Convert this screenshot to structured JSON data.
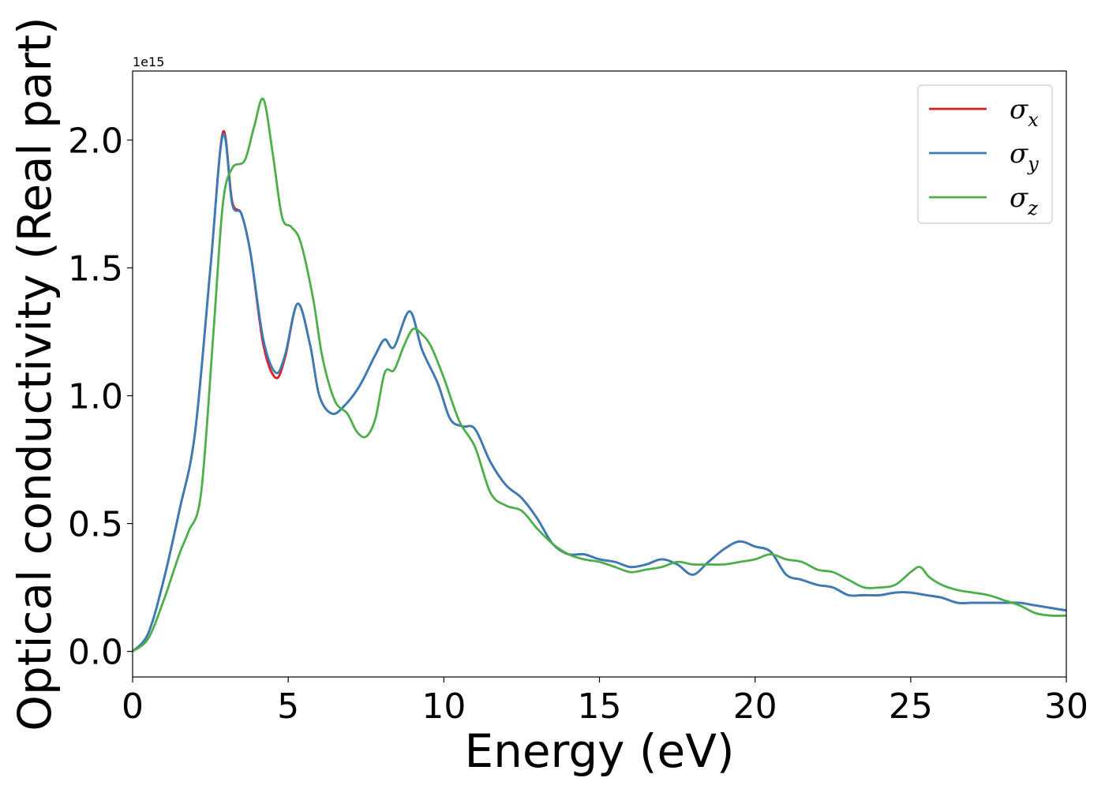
{
  "chart_data": {
    "type": "line",
    "xlabel": "Energy (eV)",
    "ylabel": "Optical conductivity (Real part)",
    "y_offset_text": "1e15",
    "xlim": [
      0,
      30
    ],
    "ylim": [
      -0.1,
      2.27
    ],
    "x_ticks": [
      0,
      5,
      10,
      15,
      20,
      25,
      30
    ],
    "x_tick_labels": [
      "0",
      "5",
      "10",
      "15",
      "20",
      "25",
      "30"
    ],
    "y_ticks": [
      0.0,
      0.5,
      1.0,
      1.5,
      2.0
    ],
    "y_tick_labels": [
      "0.0",
      "0.5",
      "1.0",
      "1.5",
      "2.0"
    ],
    "grid": false,
    "legend_position": "top-right",
    "series": [
      {
        "name": "σx",
        "symbol": "σ",
        "subscript": "x",
        "color": "#e41a1c",
        "x": [
          0,
          0.5,
          1,
          1.5,
          2,
          2.5,
          2.9,
          3.2,
          3.5,
          3.8,
          4.2,
          4.6,
          4.9,
          5.3,
          5.7,
          6,
          6.4,
          6.8,
          7.3,
          7.8,
          8.1,
          8.4,
          8.9,
          9.3,
          9.8,
          10.2,
          10.6,
          11,
          11.5,
          12,
          12.5,
          13,
          13.5,
          14,
          14.5,
          15,
          15.5,
          16,
          16.5,
          17,
          17.5,
          18,
          18.5,
          19,
          19.5,
          20,
          20.5,
          21,
          21.5,
          22,
          22.5,
          23,
          23.5,
          24,
          24.5,
          25,
          25.5,
          26,
          26.5,
          27,
          27.5,
          28,
          28.5,
          29,
          29.5,
          30
        ],
        "values": [
          0,
          0.07,
          0.28,
          0.55,
          0.85,
          1.5,
          2.03,
          1.76,
          1.71,
          1.55,
          1.2,
          1.07,
          1.15,
          1.36,
          1.2,
          1.0,
          0.93,
          0.96,
          1.04,
          1.16,
          1.22,
          1.19,
          1.33,
          1.18,
          1.05,
          0.91,
          0.88,
          0.87,
          0.74,
          0.65,
          0.6,
          0.52,
          0.42,
          0.38,
          0.38,
          0.36,
          0.35,
          0.33,
          0.34,
          0.36,
          0.34,
          0.3,
          0.35,
          0.4,
          0.43,
          0.41,
          0.39,
          0.3,
          0.28,
          0.26,
          0.25,
          0.22,
          0.22,
          0.22,
          0.23,
          0.23,
          0.22,
          0.21,
          0.19,
          0.19,
          0.19,
          0.19,
          0.19,
          0.18,
          0.17,
          0.16
        ]
      },
      {
        "name": "σy",
        "symbol": "σ",
        "subscript": "y",
        "color": "#377eb8",
        "x": [
          0,
          0.5,
          1,
          1.5,
          2,
          2.5,
          2.9,
          3.2,
          3.5,
          3.8,
          4.2,
          4.6,
          4.9,
          5.3,
          5.7,
          6,
          6.4,
          6.8,
          7.3,
          7.8,
          8.1,
          8.4,
          8.9,
          9.3,
          9.8,
          10.2,
          10.6,
          11,
          11.5,
          12,
          12.5,
          13,
          13.5,
          14,
          14.5,
          15,
          15.5,
          16,
          16.5,
          17,
          17.5,
          18,
          18.5,
          19,
          19.5,
          20,
          20.5,
          21,
          21.5,
          22,
          22.5,
          23,
          23.5,
          24,
          24.5,
          25,
          25.5,
          26,
          26.5,
          27,
          27.5,
          28,
          28.5,
          29,
          29.5,
          30
        ],
        "values": [
          0,
          0.07,
          0.28,
          0.55,
          0.85,
          1.5,
          2.02,
          1.75,
          1.71,
          1.55,
          1.22,
          1.09,
          1.16,
          1.36,
          1.2,
          1.0,
          0.93,
          0.96,
          1.04,
          1.16,
          1.22,
          1.19,
          1.33,
          1.18,
          1.05,
          0.91,
          0.88,
          0.87,
          0.74,
          0.65,
          0.6,
          0.52,
          0.42,
          0.38,
          0.38,
          0.36,
          0.35,
          0.33,
          0.34,
          0.36,
          0.34,
          0.3,
          0.35,
          0.4,
          0.43,
          0.41,
          0.39,
          0.3,
          0.28,
          0.26,
          0.25,
          0.22,
          0.22,
          0.22,
          0.23,
          0.23,
          0.22,
          0.21,
          0.19,
          0.19,
          0.19,
          0.19,
          0.19,
          0.18,
          0.17,
          0.16
        ]
      },
      {
        "name": "σz",
        "symbol": "σ",
        "subscript": "z",
        "color": "#4daf4a",
        "x": [
          0,
          0.5,
          1,
          1.5,
          1.8,
          2.2,
          2.6,
          2.9,
          3.2,
          3.6,
          3.9,
          4.2,
          4.5,
          4.8,
          5.1,
          5.4,
          5.8,
          6.1,
          6.5,
          6.9,
          7.2,
          7.5,
          7.8,
          8.1,
          8.4,
          8.7,
          9,
          9.3,
          9.6,
          10,
          10.5,
          11,
          11.5,
          12,
          12.5,
          13,
          13.5,
          14,
          14.5,
          15,
          15.5,
          16,
          16.5,
          17,
          17.5,
          18,
          18.5,
          19,
          19.5,
          20,
          20.5,
          21,
          21.5,
          22,
          22.5,
          23,
          23.5,
          24,
          24.5,
          25,
          25.3,
          25.6,
          26,
          26.5,
          27,
          27.5,
          28,
          28.5,
          29,
          29.5,
          30
        ],
        "values": [
          0,
          0.05,
          0.2,
          0.38,
          0.47,
          0.62,
          1.25,
          1.75,
          1.89,
          1.92,
          2.05,
          2.16,
          1.95,
          1.7,
          1.66,
          1.6,
          1.38,
          1.15,
          0.98,
          0.93,
          0.86,
          0.84,
          0.91,
          1.09,
          1.1,
          1.19,
          1.26,
          1.24,
          1.19,
          1.07,
          0.9,
          0.8,
          0.62,
          0.57,
          0.55,
          0.48,
          0.42,
          0.38,
          0.36,
          0.35,
          0.33,
          0.31,
          0.32,
          0.33,
          0.35,
          0.34,
          0.34,
          0.34,
          0.35,
          0.36,
          0.38,
          0.36,
          0.35,
          0.32,
          0.31,
          0.28,
          0.25,
          0.25,
          0.26,
          0.31,
          0.33,
          0.29,
          0.26,
          0.24,
          0.23,
          0.22,
          0.2,
          0.18,
          0.15,
          0.14,
          0.14
        ]
      }
    ]
  }
}
